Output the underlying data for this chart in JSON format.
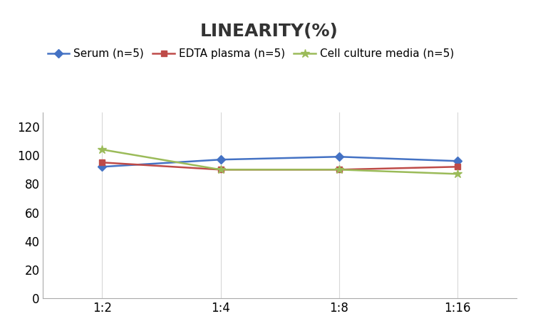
{
  "title": "LINEARITY(%)",
  "x_labels": [
    "1:2",
    "1:4",
    "1:8",
    "1:16"
  ],
  "x_positions": [
    0,
    1,
    2,
    3
  ],
  "series": [
    {
      "name": "Serum (n=5)",
      "values": [
        92,
        97,
        99,
        96
      ],
      "color": "#4472C4",
      "marker": "D",
      "linewidth": 1.8,
      "markersize": 6
    },
    {
      "name": "EDTA plasma (n=5)",
      "values": [
        95,
        90,
        90,
        92
      ],
      "color": "#BE4B48",
      "marker": "s",
      "linewidth": 1.8,
      "markersize": 6
    },
    {
      "name": "Cell culture media (n=5)",
      "values": [
        104,
        90,
        90,
        87
      ],
      "color": "#9BBB59",
      "marker": "*",
      "linewidth": 1.8,
      "markersize": 9
    }
  ],
  "ylim": [
    0,
    130
  ],
  "yticks": [
    0,
    20,
    40,
    60,
    80,
    100,
    120
  ],
  "title_fontsize": 18,
  "title_fontweight": "bold",
  "legend_fontsize": 11,
  "tick_fontsize": 12,
  "background_color": "#ffffff",
  "grid_color": "#d8d8d8",
  "spine_color": "#aaaaaa"
}
